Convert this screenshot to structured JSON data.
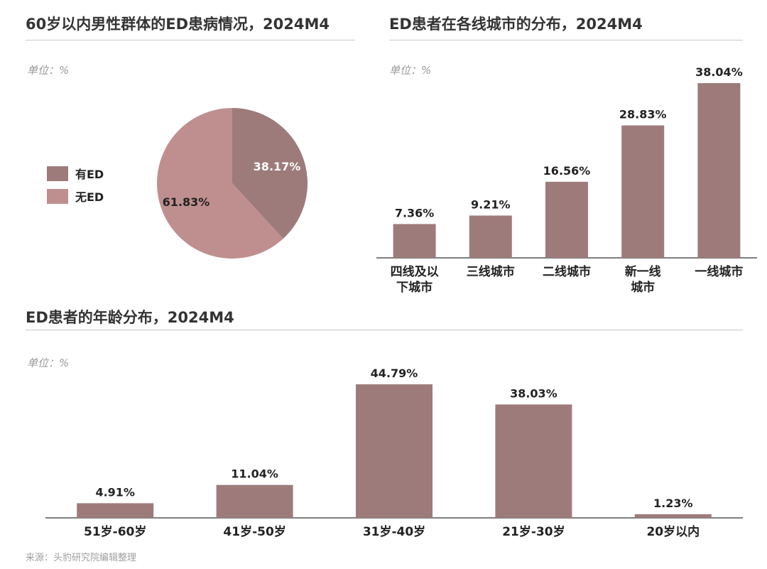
{
  "source": "来源：头豹研究院编辑整理",
  "colors": {
    "bar": "#9e7b7b",
    "pie_yes": "#9e7b7b",
    "pie_no": "#bf8f8f",
    "axis": "#555555",
    "rule": "#c9c9c9"
  },
  "chart_data": [
    {
      "type": "pie",
      "title": "60岁以内男性群体的ED患病情况，2024M4",
      "unit": "单位：%",
      "legend": "left",
      "slices": [
        {
          "name": "有ED",
          "value": 38.17,
          "label": "38.17%",
          "color": "#9e7b7b"
        },
        {
          "name": "无ED",
          "value": 61.83,
          "label": "61.83%",
          "color": "#bf8f8f"
        }
      ]
    },
    {
      "type": "bar",
      "title": "ED患者在各线城市的分布，2024M4",
      "unit": "单位：%",
      "categories": [
        "四线及以下城市",
        "三线城市",
        "二线城市",
        "新一线城市",
        "一线城市"
      ],
      "category_lines": [
        [
          "四线及以",
          "下城市"
        ],
        [
          "三线城市"
        ],
        [
          "二线城市"
        ],
        [
          "新一线",
          "城市"
        ],
        [
          "一线城市"
        ]
      ],
      "values": [
        7.36,
        9.21,
        16.56,
        28.83,
        38.04
      ],
      "labels": [
        "7.36%",
        "9.21%",
        "16.56%",
        "28.83%",
        "38.04%"
      ],
      "ylim": [
        0,
        38.04
      ]
    },
    {
      "type": "bar",
      "title": "ED患者的年龄分布，2024M4",
      "unit": "单位：%",
      "categories": [
        "51岁-60岁",
        "41岁-50岁",
        "31岁-40岁",
        "21岁-30岁",
        "20岁以内"
      ],
      "values": [
        4.91,
        11.04,
        44.79,
        38.03,
        1.23
      ],
      "labels": [
        "4.91%",
        "11.04%",
        "44.79%",
        "38.03%",
        "1.23%"
      ],
      "ylim": [
        0,
        44.79
      ]
    }
  ]
}
